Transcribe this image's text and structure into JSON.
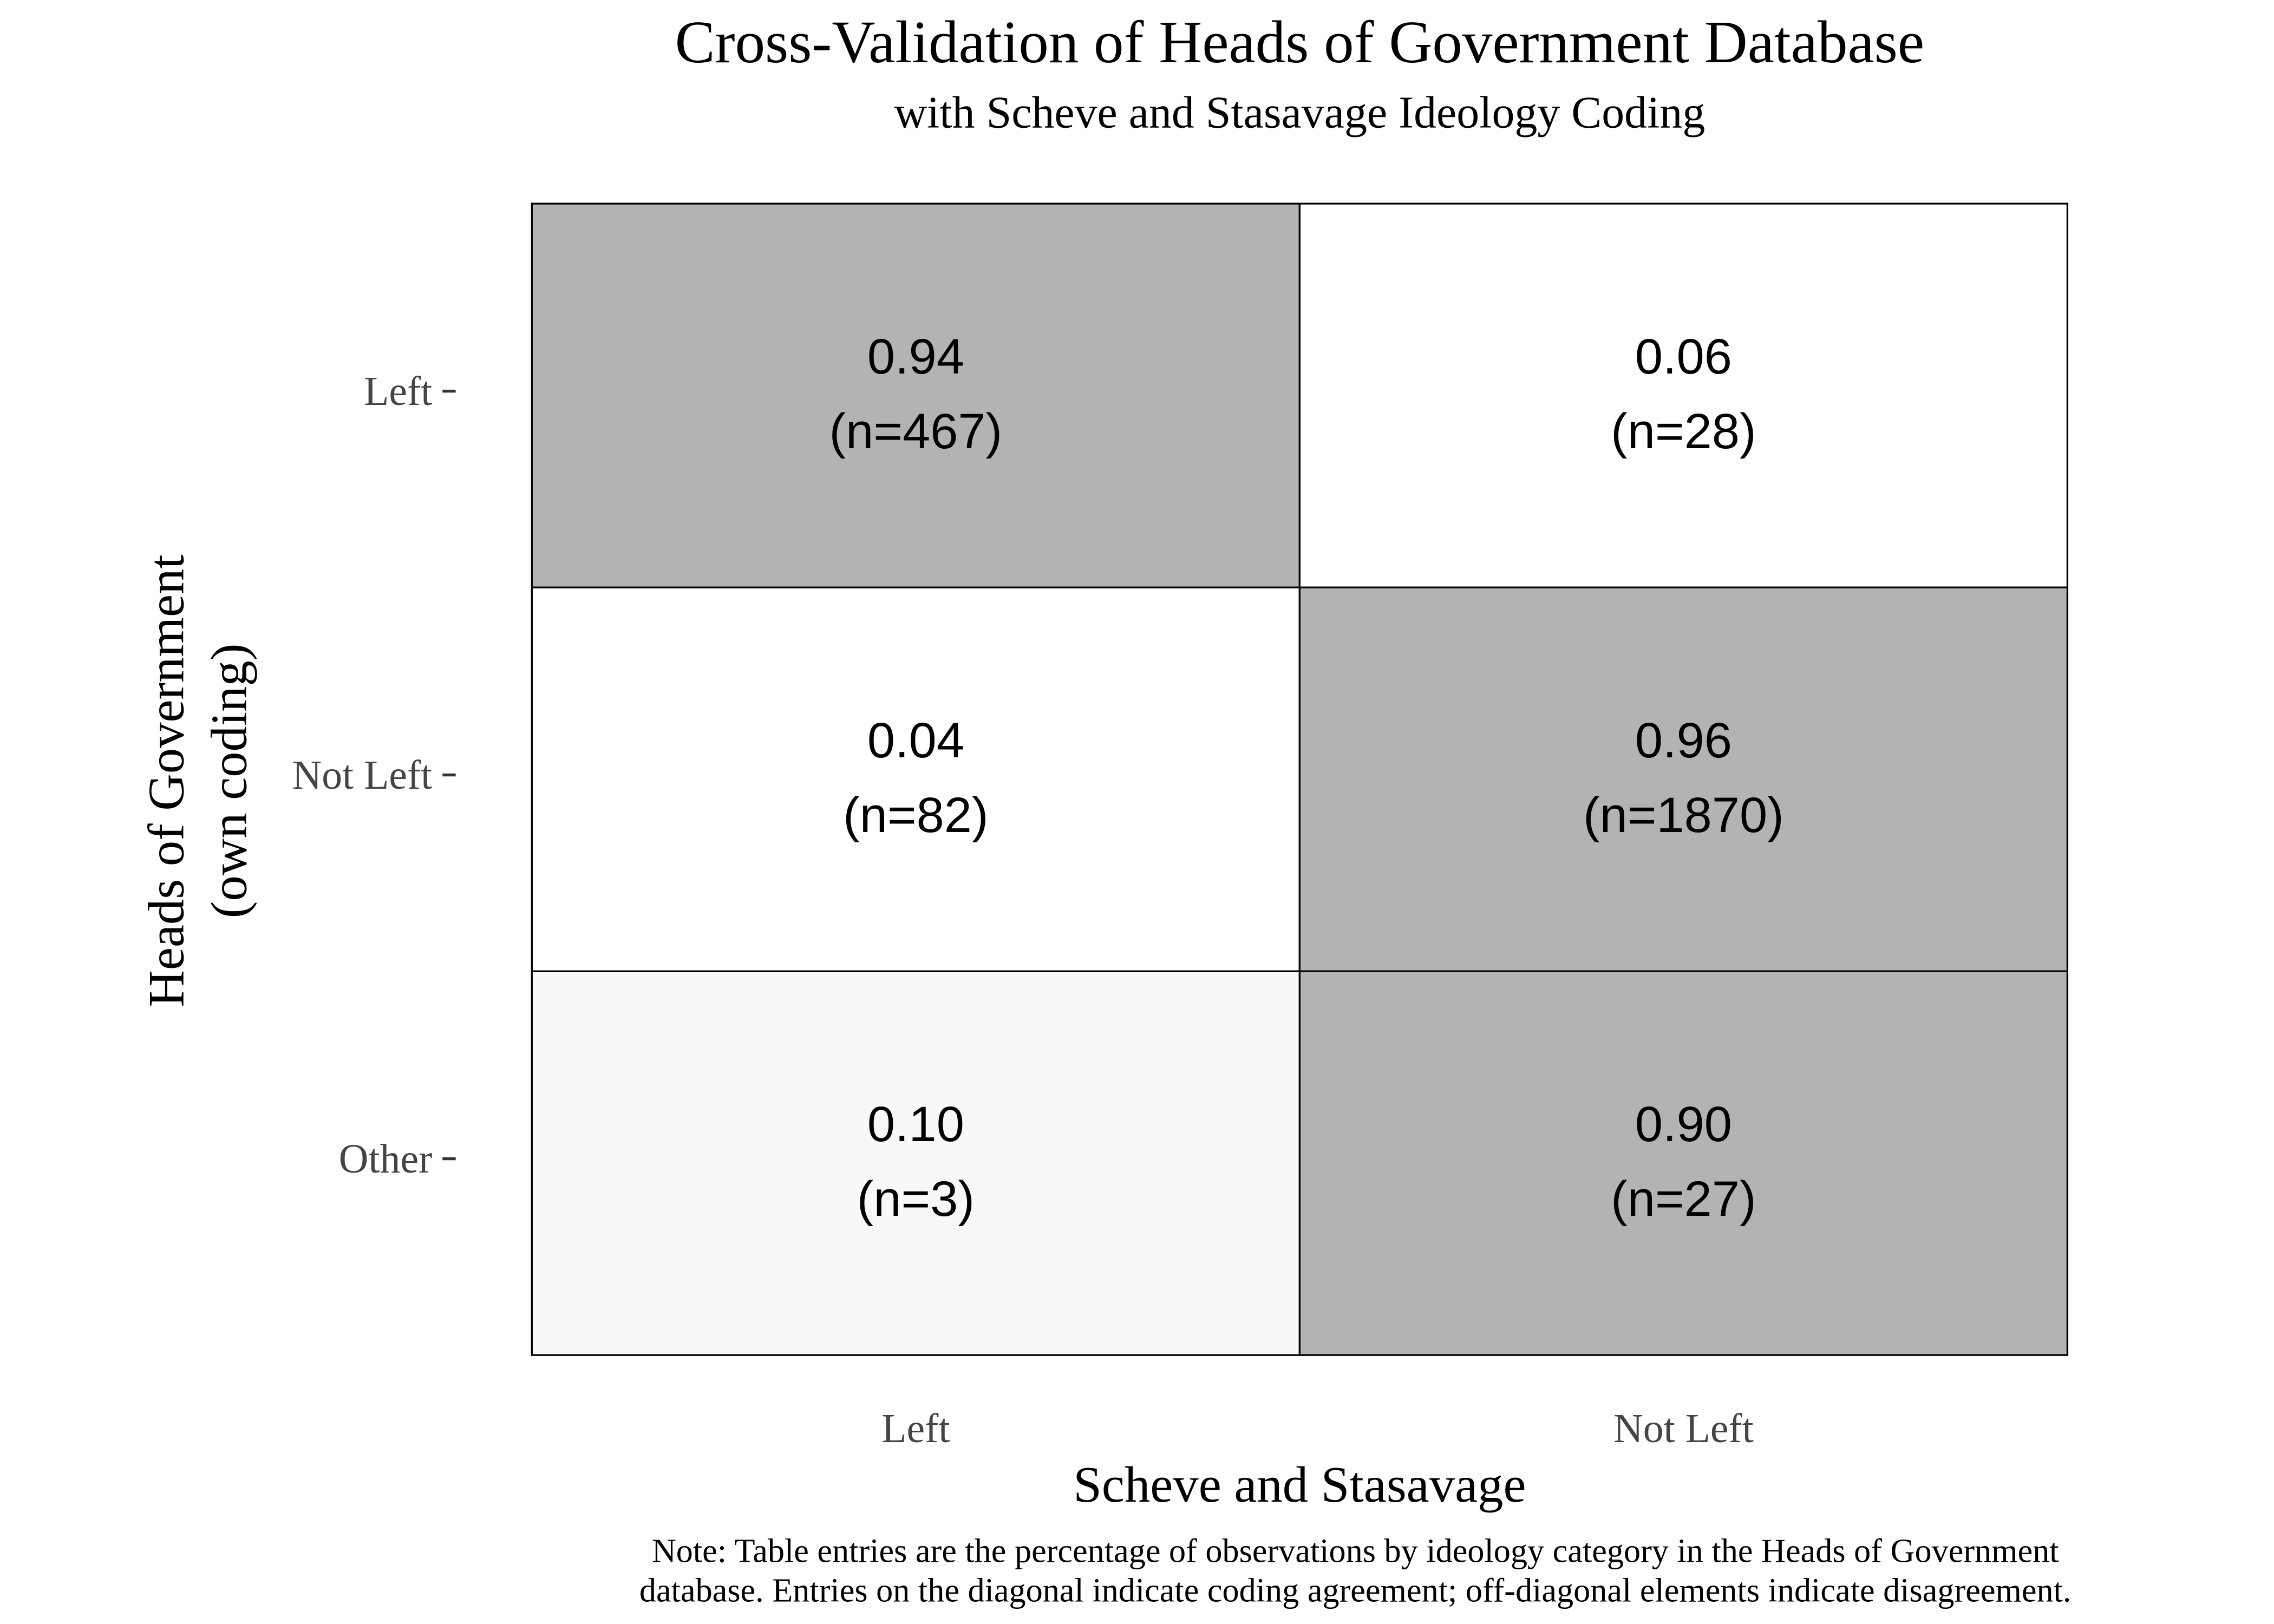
{
  "chart_data": {
    "type": "heatmap",
    "title": "Cross-Validation of Heads of Government Database",
    "subtitle": "with Scheve and Stasavage Ideology Coding",
    "xlabel": "Scheve and Stasavage",
    "ylabel": [
      "Heads of Government",
      "(own coding)"
    ],
    "x_categories": [
      "Left",
      "Not Left"
    ],
    "y_categories": [
      "Left",
      "Not Left",
      "Other"
    ],
    "values": [
      [
        0.94,
        0.06
      ],
      [
        0.04,
        0.96
      ],
      [
        0.1,
        0.9
      ]
    ],
    "value_labels": [
      [
        "0.94",
        "0.06"
      ],
      [
        "0.04",
        "0.96"
      ],
      [
        "0.10",
        "0.90"
      ]
    ],
    "counts": [
      [
        467,
        28
      ],
      [
        82,
        1870
      ],
      [
        3,
        27
      ]
    ],
    "count_labels": [
      [
        "(n=467)",
        "(n=28)"
      ],
      [
        "(n=82)",
        "(n=1870)"
      ],
      [
        "(n=3)",
        "(n=27)"
      ]
    ],
    "colors": [
      [
        "#b3b3b3",
        "#ffffff"
      ],
      [
        "#ffffff",
        "#b3b3b3"
      ],
      [
        "#f8f8f8",
        "#b3b3b3"
      ]
    ],
    "note": [
      "Note: Table entries are the percentage of observations by ideology category in the Heads of Government",
      "database. Entries on the diagonal indicate coding agreement; off-diagonal elements indicate disagreement."
    ]
  }
}
